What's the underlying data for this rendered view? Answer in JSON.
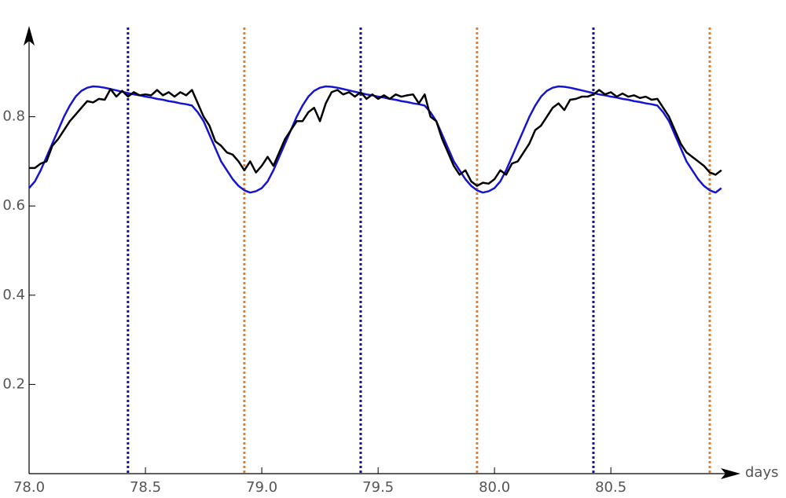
{
  "chart_data": {
    "type": "line",
    "x_label": "days",
    "x": [
      78,
      78.025,
      78.05,
      78.075,
      78.1,
      78.125,
      78.15,
      78.175,
      78.2,
      78.225,
      78.25,
      78.275,
      78.3,
      78.325,
      78.35,
      78.375,
      78.4,
      78.425,
      78.45,
      78.475,
      78.5,
      78.525,
      78.55,
      78.575,
      78.6,
      78.625,
      78.65,
      78.675,
      78.7,
      78.725,
      78.75,
      78.775,
      78.8,
      78.825,
      78.85,
      78.875,
      78.9,
      78.925,
      78.95,
      78.975,
      79,
      79.025,
      79.05,
      79.075,
      79.1,
      79.125,
      79.15,
      79.175,
      79.2,
      79.225,
      79.25,
      79.275,
      79.3,
      79.325,
      79.35,
      79.375,
      79.4,
      79.425,
      79.45,
      79.475,
      79.5,
      79.525,
      79.55,
      79.575,
      79.6,
      79.625,
      79.65,
      79.675,
      79.7,
      79.725,
      79.75,
      79.775,
      79.8,
      79.825,
      79.85,
      79.875,
      79.9,
      79.925,
      79.95,
      79.975,
      80,
      80.025,
      80.05,
      80.075,
      80.1,
      80.125,
      80.15,
      80.175,
      80.2,
      80.225,
      80.25,
      80.275,
      80.3,
      80.325,
      80.35,
      80.375,
      80.4,
      80.425,
      80.45,
      80.475,
      80.5,
      80.525,
      80.55,
      80.575,
      80.6,
      80.625,
      80.65,
      80.675,
      80.7,
      80.725,
      80.75,
      80.775,
      80.8,
      80.825,
      80.85,
      80.875,
      80.9,
      80.925,
      80.95,
      80.975
    ],
    "series": [
      {
        "color": "#1515d0",
        "values": [
          0.64,
          0.655,
          0.68,
          0.71,
          0.74,
          0.77,
          0.8,
          0.825,
          0.845,
          0.858,
          0.865,
          0.868,
          0.867,
          0.865,
          0.862,
          0.859,
          0.856,
          0.853,
          0.85,
          0.848,
          0.845,
          0.843,
          0.84,
          0.838,
          0.835,
          0.833,
          0.83,
          0.828,
          0.825,
          0.81,
          0.79,
          0.76,
          0.73,
          0.7,
          0.68,
          0.66,
          0.645,
          0.635,
          0.63,
          0.633,
          0.64,
          0.655,
          0.68,
          0.71,
          0.74,
          0.77,
          0.8,
          0.825,
          0.845,
          0.858,
          0.865,
          0.868,
          0.867,
          0.865,
          0.862,
          0.859,
          0.856,
          0.853,
          0.85,
          0.848,
          0.845,
          0.843,
          0.84,
          0.838,
          0.835,
          0.833,
          0.83,
          0.828,
          0.825,
          0.81,
          0.79,
          0.76,
          0.73,
          0.7,
          0.68,
          0.66,
          0.645,
          0.635,
          0.63,
          0.633,
          0.64,
          0.655,
          0.68,
          0.71,
          0.74,
          0.77,
          0.8,
          0.825,
          0.845,
          0.858,
          0.865,
          0.868,
          0.867,
          0.865,
          0.862,
          0.859,
          0.856,
          0.853,
          0.85,
          0.848,
          0.845,
          0.843,
          0.84,
          0.838,
          0.835,
          0.833,
          0.83,
          0.828,
          0.825,
          0.81,
          0.79,
          0.76,
          0.73,
          0.7,
          0.68,
          0.66,
          0.645,
          0.635,
          0.63,
          0.64
        ]
      },
      {
        "color": "#000000",
        "values": [
          0.685,
          0.685,
          0.695,
          0.7,
          0.735,
          0.75,
          0.77,
          0.79,
          0.805,
          0.82,
          0.835,
          0.832,
          0.84,
          0.838,
          0.862,
          0.845,
          0.858,
          0.845,
          0.855,
          0.848,
          0.85,
          0.848,
          0.86,
          0.848,
          0.855,
          0.845,
          0.855,
          0.848,
          0.86,
          0.83,
          0.8,
          0.78,
          0.745,
          0.735,
          0.72,
          0.715,
          0.7,
          0.68,
          0.7,
          0.675,
          0.69,
          0.71,
          0.69,
          0.72,
          0.75,
          0.77,
          0.79,
          0.79,
          0.81,
          0.82,
          0.79,
          0.83,
          0.855,
          0.86,
          0.85,
          0.855,
          0.845,
          0.855,
          0.84,
          0.85,
          0.84,
          0.848,
          0.84,
          0.85,
          0.845,
          0.848,
          0.85,
          0.83,
          0.85,
          0.8,
          0.79,
          0.75,
          0.72,
          0.69,
          0.67,
          0.68,
          0.655,
          0.645,
          0.652,
          0.65,
          0.66,
          0.68,
          0.67,
          0.695,
          0.7,
          0.72,
          0.74,
          0.77,
          0.78,
          0.8,
          0.82,
          0.83,
          0.815,
          0.838,
          0.84,
          0.845,
          0.845,
          0.85,
          0.86,
          0.85,
          0.855,
          0.845,
          0.852,
          0.845,
          0.848,
          0.842,
          0.845,
          0.838,
          0.84,
          0.82,
          0.8,
          0.77,
          0.74,
          0.72,
          0.71,
          0.7,
          0.69,
          0.675,
          0.67,
          0.68
        ]
      }
    ],
    "vertical_lines": [
      {
        "x": 78.425,
        "color": "#1010b0"
      },
      {
        "x": 79.425,
        "color": "#1010b0"
      },
      {
        "x": 80.425,
        "color": "#1010b0"
      },
      {
        "x": 78.925,
        "color": "#f07c1a"
      },
      {
        "x": 79.925,
        "color": "#f07c1a"
      },
      {
        "x": 80.925,
        "color": "#f07c1a"
      }
    ],
    "xlim": [
      78,
      81.05
    ],
    "ylim": [
      0,
      1.0
    ],
    "xticks": [
      {
        "value": 78,
        "label": "78.0"
      },
      78.5,
      {
        "value": 79,
        "label": "79.0"
      },
      79.5,
      {
        "value": 80,
        "label": "80.0"
      },
      80.5
    ],
    "yticks": [
      0.2,
      0.4,
      0.6,
      0.8
    ]
  }
}
